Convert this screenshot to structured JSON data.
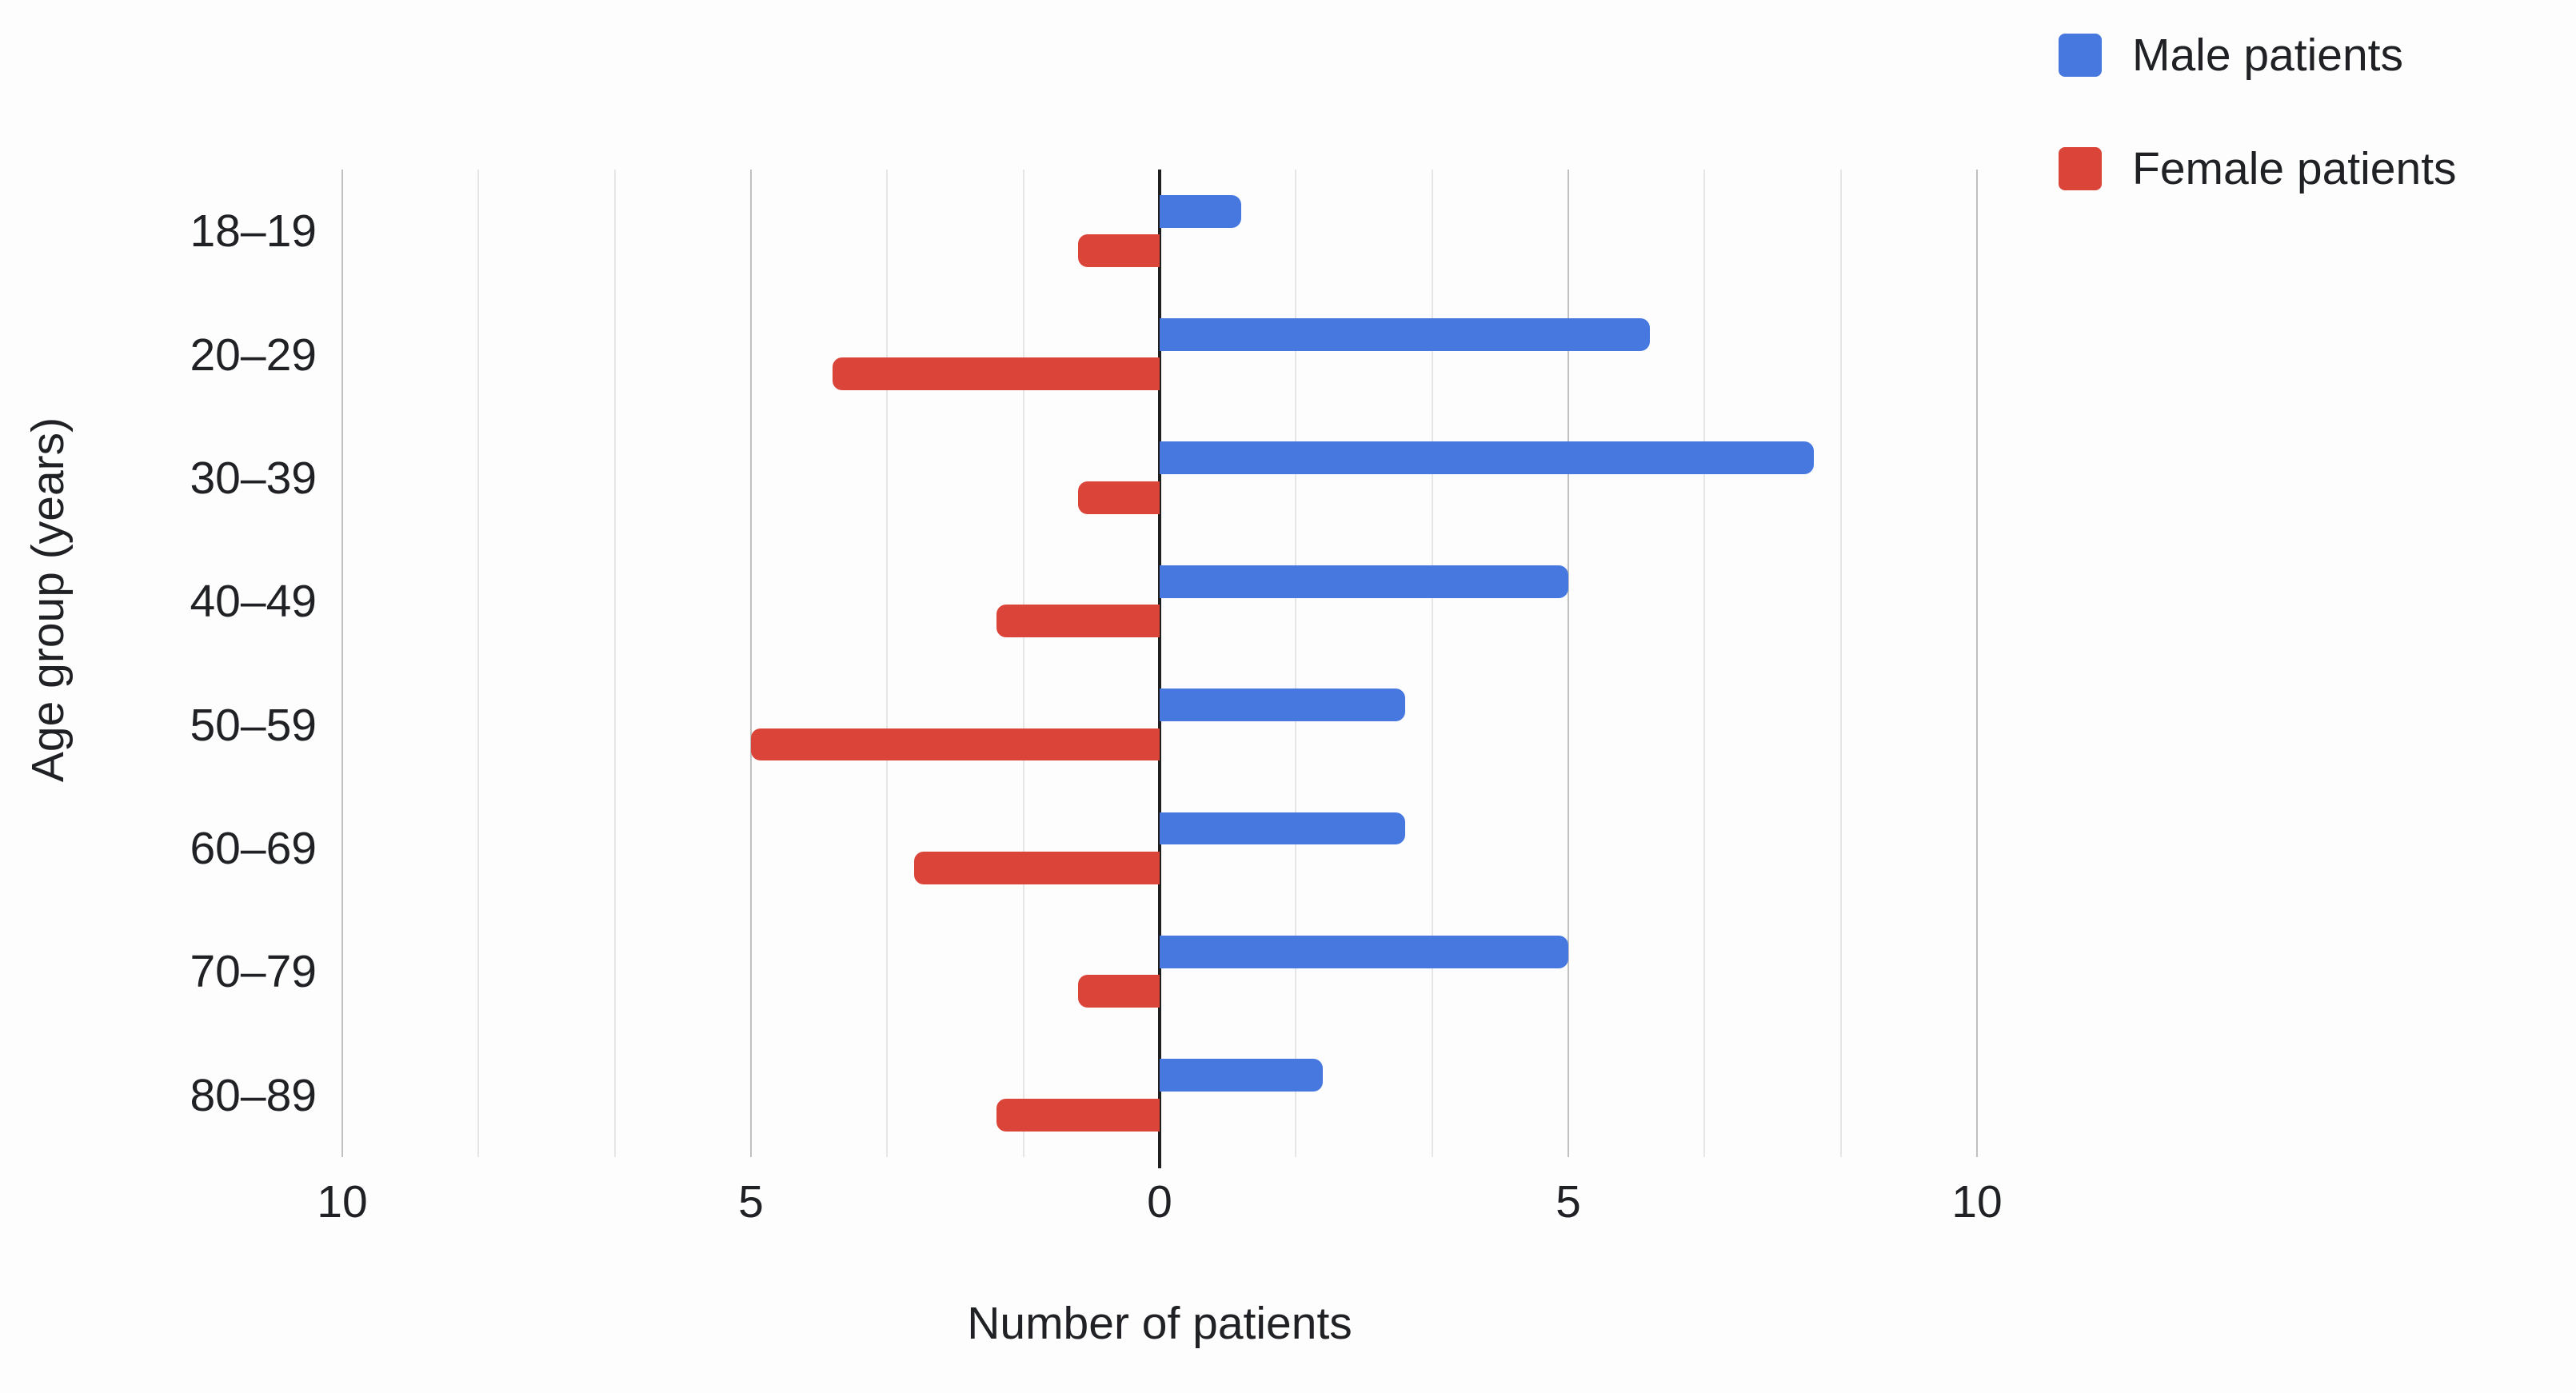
{
  "chart_data": {
    "type": "bar",
    "subtype": "diverging-horizontal-population-pyramid",
    "title": "",
    "categories": [
      "18–19",
      "20–29",
      "30–39",
      "40–49",
      "50–59",
      "60–69",
      "70–79",
      "80–89"
    ],
    "series": [
      {
        "name": "Male patients",
        "side": "right",
        "color": "#4678E0",
        "values": [
          1,
          6,
          8,
          5,
          3,
          3,
          5,
          2
        ]
      },
      {
        "name": "Female patients",
        "side": "left",
        "color": "#DB4539",
        "values": [
          1,
          4,
          1,
          2,
          5,
          3,
          1,
          2
        ]
      }
    ],
    "xlabel": "Number of patients",
    "ylabel": "Age group (years)",
    "xlim": [
      -10,
      10
    ],
    "x_ticks": [
      {
        "value": -10,
        "label": "10"
      },
      {
        "value": -5,
        "label": "5"
      },
      {
        "value": 0,
        "label": "0"
      },
      {
        "value": 5,
        "label": "5"
      },
      {
        "value": 10,
        "label": "10"
      }
    ],
    "minor_gridlines_between_majors": 2,
    "grid": true,
    "legend_position": "top-right",
    "colors": {
      "axis_line": "#1f1f1f",
      "major_gridline": "#c0c0c0",
      "minor_gridline": "#e6e6e6",
      "text": "#202124",
      "background": "#fdfdfd"
    }
  }
}
